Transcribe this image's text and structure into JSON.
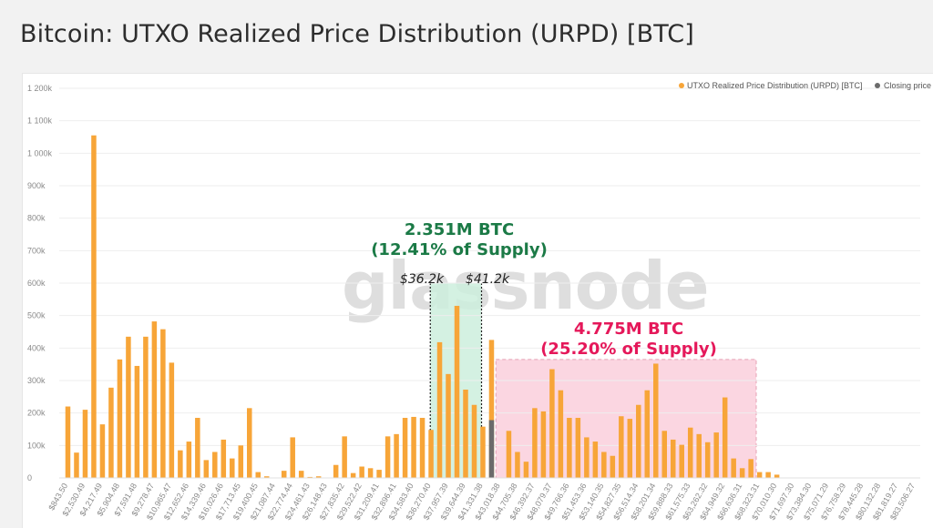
{
  "title": "Bitcoin: UTXO Realized Price Distribution (URPD) [BTC]",
  "watermark": "glassnode",
  "colors": {
    "bar": "#f7a538",
    "closing": "#6b6b6b",
    "green_band": "#cdeedd",
    "pink_band": "#fbd1de",
    "green_text": "#1b7a46",
    "pink_text": "#e5185a"
  },
  "legend": [
    {
      "label": "UTXO Realized Price Distribution (URPD) [BTC]",
      "color": "#f7a538"
    },
    {
      "label": "Closing price",
      "color": "#6b6b6b"
    }
  ],
  "annotations": {
    "green_line1": "2.351M BTC",
    "green_line2": "(12.41% of Supply)",
    "pink_line1": "4.775M BTC",
    "pink_line2": "(25.20% of Supply)",
    "price_low": "$36.2k",
    "price_high": "$41.2k"
  },
  "chart_data": {
    "type": "bar",
    "ylim": [
      0,
      1200000
    ],
    "y_ticks": [
      0,
      100000,
      200000,
      300000,
      400000,
      500000,
      600000,
      700000,
      800000,
      900000,
      1000000,
      1100000,
      1200000
    ],
    "y_tick_labels": [
      "0",
      "100k",
      "200k",
      "300k",
      "400k",
      "500k",
      "600k",
      "700k",
      "800k",
      "900k",
      "1 000k",
      "1 100k",
      "1 200k"
    ],
    "x_tick_labels": [
      "$843.50",
      "$2,530.49",
      "$4,217.49",
      "$5,904.48",
      "$7,591.48",
      "$9,278.47",
      "$10,965.47",
      "$12,652.46",
      "$14,339.46",
      "$16,026.46",
      "$17,713.45",
      "$19,400.45",
      "$21,087.44",
      "$22,774.44",
      "$24,461.43",
      "$26,148.43",
      "$27,835.42",
      "$29,522.42",
      "$31,209.41",
      "$32,896.41",
      "$34,583.40",
      "$36,270.40",
      "$37,957.39",
      "$39,644.39",
      "$41,331.38",
      "$43,018.38",
      "$44,705.38",
      "$46,392.37",
      "$48,079.37",
      "$49,766.36",
      "$51,453.36",
      "$53,140.35",
      "$54,827.35",
      "$56,514.34",
      "$58,201.34",
      "$59,888.33",
      "$61,575.33",
      "$63,262.32",
      "$64,949.32",
      "$66,636.31",
      "$68,323.31",
      "$70,010.30",
      "$71,697.30",
      "$73,384.30",
      "$75,071.29",
      "$76,758.29",
      "$78,445.28",
      "$80,132.28",
      "$81,819.27",
      "$83,506.27"
    ],
    "x_min": 0,
    "x_max": 84000,
    "bin_width": 843.5,
    "series": [
      {
        "name": "UTXO Realized Price Distribution (URPD) [BTC]",
        "x": [
          843.5,
          1687,
          2530.5,
          3374,
          4217.5,
          5061,
          5904.5,
          6748,
          7591.5,
          8435,
          9278.5,
          10122,
          10965.5,
          11809,
          12652.5,
          13496,
          14339.5,
          15183,
          16026.5,
          16870,
          17713.5,
          18557,
          19400.5,
          20244,
          21087.5,
          21931,
          22774.5,
          23618,
          24461.5,
          25305,
          26148.5,
          26992,
          27835.5,
          28679,
          29522.5,
          30366,
          31209.5,
          32053,
          32896.5,
          33740,
          34583.5,
          35427,
          36270.5,
          37114,
          37957.5,
          38801,
          39644.5,
          40488,
          41331.5,
          42175,
          43018.5,
          43862,
          44705.5,
          45549,
          46392.5,
          47236,
          48079.5,
          48923,
          49766.5,
          50610,
          51453.5,
          52297,
          53140.5,
          53984,
          54827.5,
          55671,
          56514.5,
          57358,
          58201.5,
          59045,
          59888.5,
          60732,
          61575.5,
          62419,
          63262.5,
          64106,
          64949.5,
          65793,
          66636.5,
          67480,
          68323.5,
          69167,
          70010.5
        ],
        "values": [
          220000,
          78000,
          210000,
          1055000,
          165000,
          278000,
          365000,
          435000,
          345000,
          435000,
          482000,
          458000,
          355000,
          85000,
          112000,
          185000,
          55000,
          80000,
          118000,
          60000,
          100000,
          215000,
          18000,
          5000,
          0,
          22000,
          125000,
          22000,
          3000,
          5000,
          0,
          40000,
          128000,
          15000,
          35000,
          30000,
          25000,
          128000,
          135000,
          185000,
          188000,
          185000,
          148000,
          418000,
          320000,
          530000,
          272000,
          225000,
          158000,
          425000,
          0,
          145000,
          80000,
          50000,
          215000,
          205000,
          335000,
          270000,
          185000,
          185000,
          125000,
          112000,
          80000,
          68000,
          190000,
          182000,
          225000,
          270000,
          352000,
          145000,
          118000,
          102000,
          155000,
          135000,
          110000,
          140000,
          248000,
          60000,
          30000,
          58000,
          18000,
          18000,
          10000
        ]
      },
      {
        "name": "Closing price",
        "x": [
          42175
        ],
        "values": [
          178000
        ]
      }
    ],
    "ranges": [
      {
        "from": 36200,
        "to": 41200,
        "btc": "2.351M BTC",
        "share": "(12.41% of Supply)"
      },
      {
        "from": 42600,
        "to": 68000,
        "btc": "4.775M BTC",
        "share": "(25.20% of Supply)"
      }
    ]
  }
}
